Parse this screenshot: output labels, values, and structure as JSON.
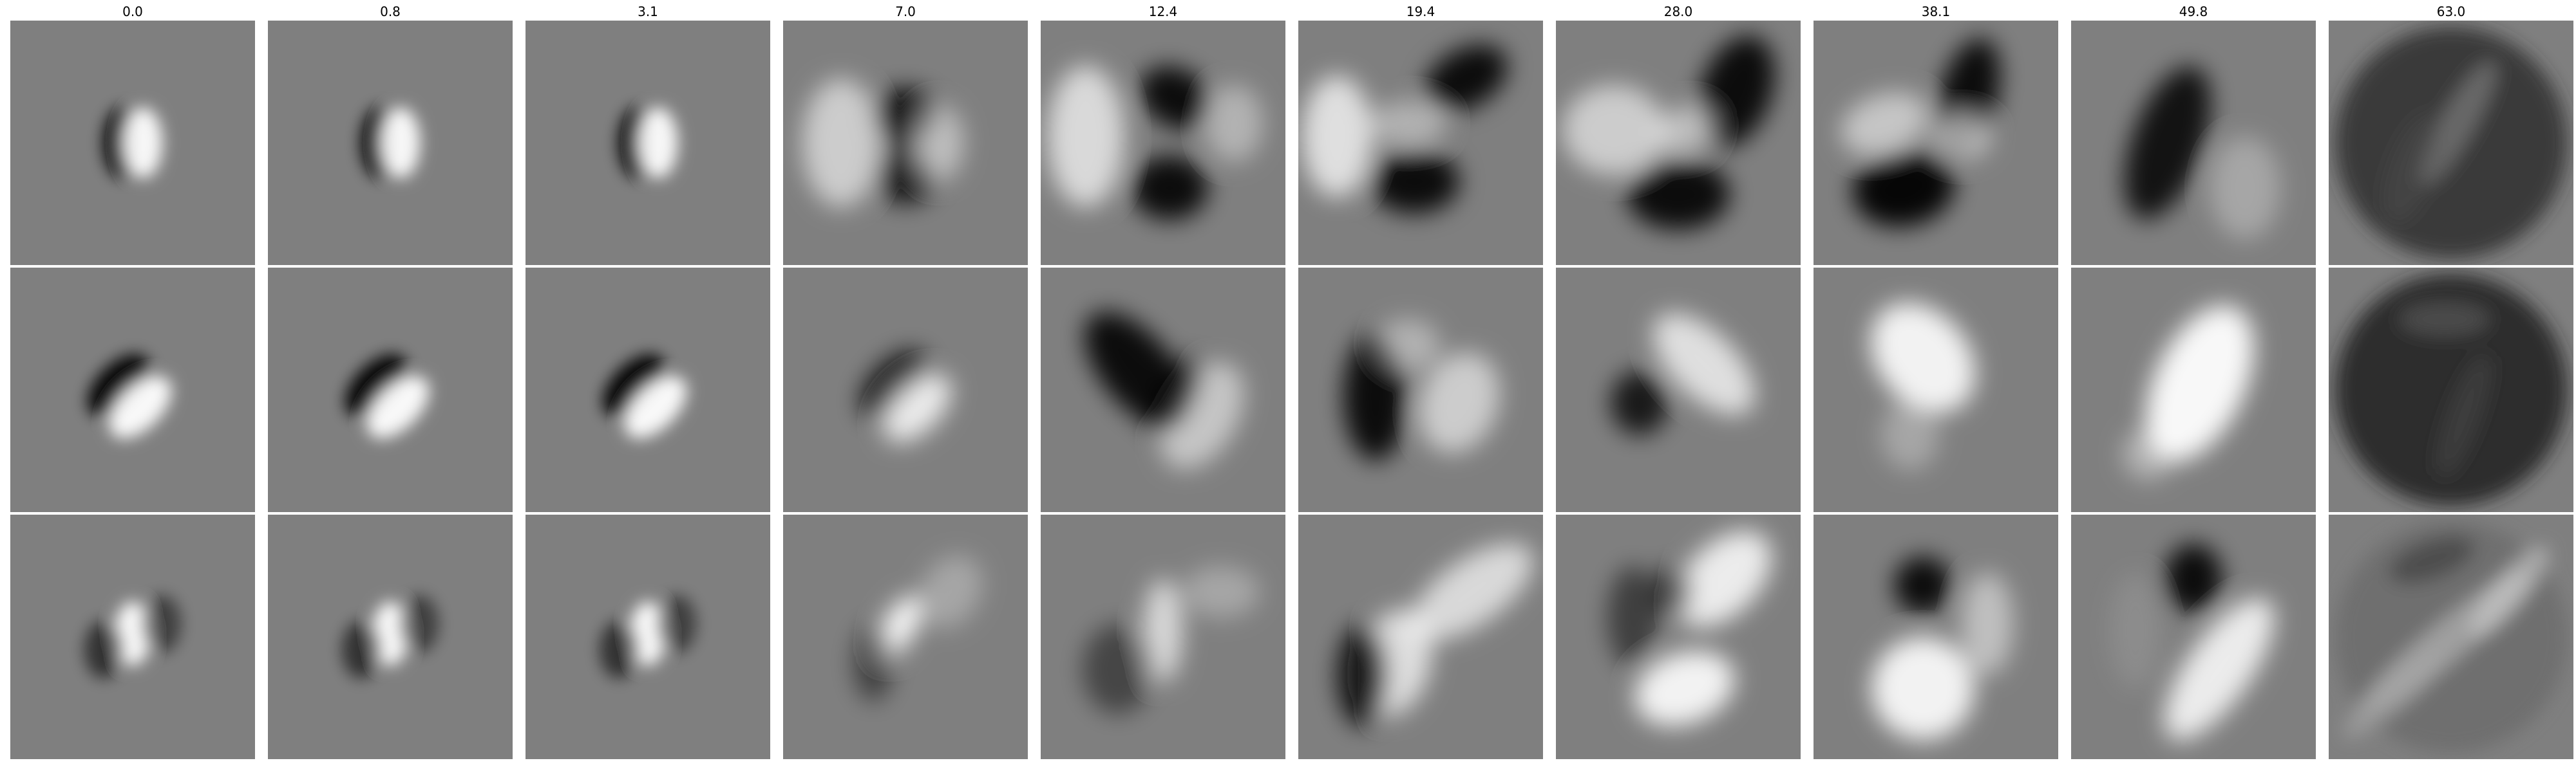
{
  "figure": {
    "columns": [
      "0.0",
      "0.8",
      "3.1",
      "7.0",
      "12.4",
      "19.4",
      "28.0",
      "38.1",
      "49.8",
      "63.0"
    ],
    "rows": 3,
    "colormap": "grayscale",
    "background_gray": "#7f7f7f"
  }
}
